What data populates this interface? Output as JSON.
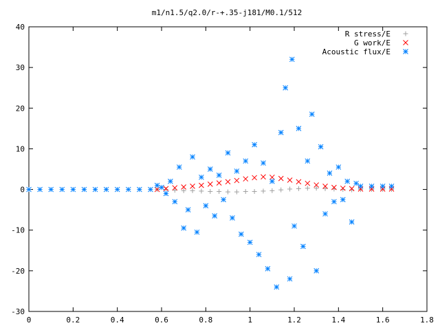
{
  "chart_data": {
    "type": "scatter",
    "title": "m1/n1.5/q2.0/r-+.35-j181/M0.1/512",
    "xlabel": "",
    "ylabel": "",
    "xlim": [
      0,
      1.8
    ],
    "ylim": [
      -30,
      40
    ],
    "x_ticks": [
      "0",
      "0.2",
      "0.4",
      "0.6",
      "0.8",
      "1",
      "1.2",
      "1.4",
      "1.6",
      "1.8"
    ],
    "y_ticks": [
      "40",
      "30",
      "20",
      "10",
      "0",
      "-10",
      "-20",
      "-30"
    ],
    "grid": false,
    "legend_position": "top-right",
    "series": [
      {
        "name": "R stress/E",
        "marker": "+",
        "color": "#a0a0a0",
        "points": [
          [
            0.58,
            0.0
          ],
          [
            0.62,
            0.0
          ],
          [
            0.66,
            -0.2
          ],
          [
            0.7,
            -0.3
          ],
          [
            0.74,
            -0.3
          ],
          [
            0.78,
            -0.4
          ],
          [
            0.82,
            -0.5
          ],
          [
            0.86,
            -0.5
          ],
          [
            0.9,
            -0.6
          ],
          [
            0.94,
            -0.6
          ],
          [
            0.98,
            -0.5
          ],
          [
            1.02,
            -0.5
          ],
          [
            1.06,
            -0.4
          ],
          [
            1.1,
            -0.3
          ],
          [
            1.14,
            -0.1
          ],
          [
            1.18,
            0.1
          ],
          [
            1.22,
            0.2
          ],
          [
            1.26,
            0.3
          ],
          [
            1.3,
            0.3
          ],
          [
            1.34,
            0.2
          ],
          [
            1.38,
            0.1
          ],
          [
            1.42,
            0.0
          ],
          [
            1.46,
            -0.1
          ],
          [
            1.5,
            0.0
          ],
          [
            1.55,
            0.0
          ],
          [
            1.6,
            0.0
          ],
          [
            1.64,
            0.0
          ]
        ]
      },
      {
        "name": "G work/E",
        "marker": "x",
        "color": "#ff0000",
        "points": [
          [
            0.58,
            0.0
          ],
          [
            0.62,
            0.2
          ],
          [
            0.66,
            0.4
          ],
          [
            0.7,
            0.6
          ],
          [
            0.74,
            0.8
          ],
          [
            0.78,
            1.0
          ],
          [
            0.82,
            1.3
          ],
          [
            0.86,
            1.6
          ],
          [
            0.9,
            1.9
          ],
          [
            0.94,
            2.2
          ],
          [
            0.98,
            2.6
          ],
          [
            1.02,
            2.9
          ],
          [
            1.06,
            3.1
          ],
          [
            1.1,
            3.0
          ],
          [
            1.14,
            2.7
          ],
          [
            1.18,
            2.3
          ],
          [
            1.22,
            1.9
          ],
          [
            1.26,
            1.5
          ],
          [
            1.3,
            1.1
          ],
          [
            1.34,
            0.8
          ],
          [
            1.38,
            0.5
          ],
          [
            1.42,
            0.3
          ],
          [
            1.46,
            0.2
          ],
          [
            1.5,
            0.1
          ],
          [
            1.55,
            0.1
          ],
          [
            1.6,
            0.1
          ],
          [
            1.64,
            0.1
          ]
        ]
      },
      {
        "name": "Acoustic flux/E",
        "marker": "*",
        "color": "#0080ff",
        "points": [
          [
            0.0,
            0.0
          ],
          [
            0.05,
            0.0
          ],
          [
            0.1,
            0.0
          ],
          [
            0.15,
            0.0
          ],
          [
            0.2,
            0.0
          ],
          [
            0.25,
            0.0
          ],
          [
            0.3,
            0.0
          ],
          [
            0.35,
            0.0
          ],
          [
            0.4,
            0.0
          ],
          [
            0.45,
            0.0
          ],
          [
            0.5,
            0.0
          ],
          [
            0.55,
            0.0
          ],
          [
            0.58,
            1.0
          ],
          [
            0.6,
            0.5
          ],
          [
            0.62,
            -1.0
          ],
          [
            0.64,
            2.0
          ],
          [
            0.66,
            -3.0
          ],
          [
            0.68,
            5.5
          ],
          [
            0.7,
            -9.5
          ],
          [
            0.72,
            -5.0
          ],
          [
            0.74,
            8.0
          ],
          [
            0.76,
            -10.5
          ],
          [
            0.78,
            3.0
          ],
          [
            0.8,
            -4.0
          ],
          [
            0.82,
            5.0
          ],
          [
            0.84,
            -6.5
          ],
          [
            0.86,
            3.5
          ],
          [
            0.88,
            -2.5
          ],
          [
            0.9,
            9.0
          ],
          [
            0.92,
            -7.0
          ],
          [
            0.94,
            4.5
          ],
          [
            0.96,
            -11.0
          ],
          [
            0.98,
            7.0
          ],
          [
            1.0,
            -13.0
          ],
          [
            1.02,
            11.0
          ],
          [
            1.04,
            -16.0
          ],
          [
            1.06,
            6.5
          ],
          [
            1.08,
            -19.5
          ],
          [
            1.1,
            2.0
          ],
          [
            1.12,
            -24.0
          ],
          [
            1.14,
            14.0
          ],
          [
            1.16,
            25.0
          ],
          [
            1.18,
            -22.0
          ],
          [
            1.19,
            32.0
          ],
          [
            1.2,
            -9.0
          ],
          [
            1.22,
            15.0
          ],
          [
            1.24,
            -14.0
          ],
          [
            1.26,
            7.0
          ],
          [
            1.28,
            18.5
          ],
          [
            1.3,
            -20.0
          ],
          [
            1.32,
            10.5
          ],
          [
            1.34,
            -6.0
          ],
          [
            1.36,
            4.0
          ],
          [
            1.38,
            -3.0
          ],
          [
            1.4,
            5.5
          ],
          [
            1.42,
            -2.5
          ],
          [
            1.44,
            2.0
          ],
          [
            1.46,
            -8.0
          ],
          [
            1.48,
            1.5
          ],
          [
            1.5,
            0.8
          ],
          [
            1.55,
            0.8
          ],
          [
            1.6,
            0.8
          ],
          [
            1.64,
            0.8
          ]
        ]
      }
    ]
  }
}
